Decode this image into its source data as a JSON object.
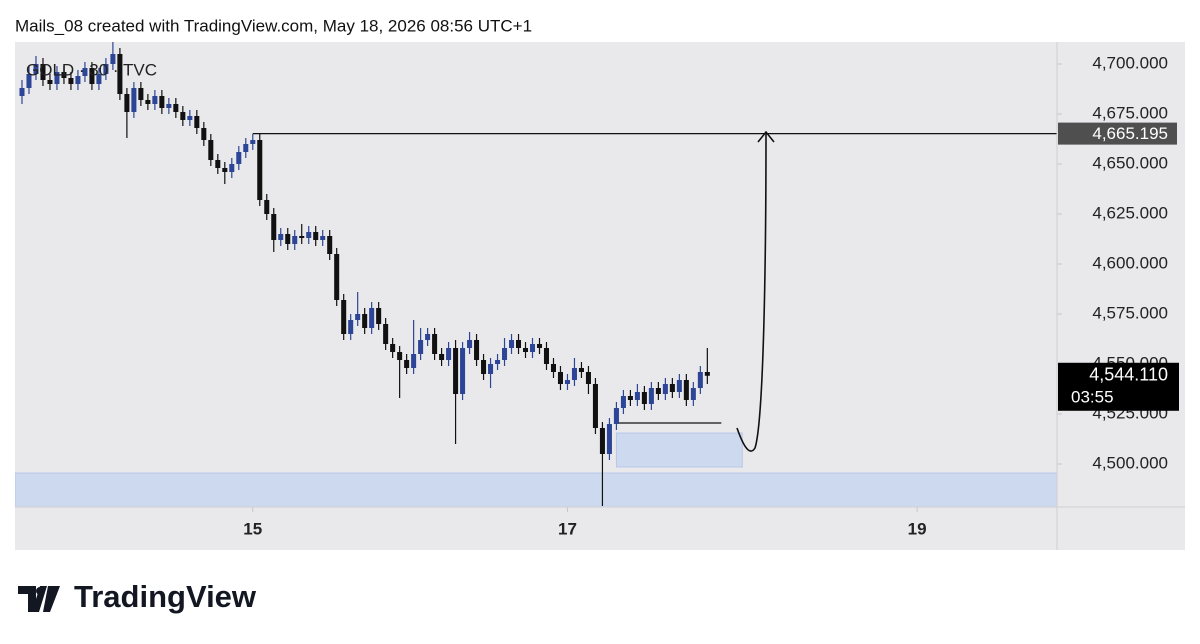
{
  "chart_data": {
    "type": "candlestick",
    "title": "Mails_08 created with TradingView.com, May 18, 2026 08:56 UTC+1",
    "symbol": "GOLD · 30 · TVC",
    "brand": "TradingView",
    "up_color": "#2d4596",
    "down_color": "#111111",
    "x": [
      1,
      2,
      3,
      4,
      5,
      6,
      7,
      8,
      9,
      10,
      11,
      12,
      13,
      14,
      15,
      16,
      17,
      18,
      19,
      20,
      21,
      22,
      23,
      24,
      25,
      26,
      27,
      28,
      29,
      30,
      31,
      32,
      33,
      34,
      35,
      36,
      37,
      38,
      39,
      40,
      41,
      42,
      43,
      44,
      45,
      46,
      47,
      48,
      49,
      50,
      51,
      52,
      53,
      54,
      55,
      56,
      57,
      58,
      59,
      60,
      61,
      62,
      63,
      64,
      65,
      66,
      67,
      68,
      69,
      70,
      71,
      72,
      73,
      74,
      75,
      76,
      77,
      78,
      79,
      80,
      81,
      82,
      83,
      84,
      85,
      86,
      87,
      88,
      89,
      90,
      91,
      92,
      93,
      94,
      95,
      96,
      97,
      98,
      99
    ],
    "open": [
      4684,
      4688,
      4695,
      4700,
      4692,
      4690,
      4696,
      4693,
      4690,
      4694,
      4698,
      4690,
      4695,
      4700,
      4705,
      4685,
      4676,
      4688,
      4682,
      4680,
      4684,
      4678,
      4680,
      4676,
      4672,
      4674,
      4668,
      4662,
      4652,
      4648,
      4646,
      4650,
      4656,
      4660,
      4662,
      4632,
      4625,
      4612,
      4615,
      4610,
      4614,
      4613,
      4616,
      4612,
      4614,
      4605,
      4582,
      4565,
      4572,
      4575,
      4568,
      4578,
      4570,
      4560,
      4556,
      4552,
      4548,
      4555,
      4562,
      4565,
      4555,
      4552,
      4558,
      4535,
      4558,
      4562,
      4552,
      4545,
      4550,
      4552,
      4558,
      4562,
      4558,
      4556,
      4560,
      4558,
      4550,
      4546,
      4540,
      4542,
      4548,
      4546,
      4540,
      4518,
      4505,
      4520,
      4528,
      4534,
      4532,
      4536,
      4530,
      4538,
      4535,
      4540,
      4536,
      4542,
      4532,
      4538,
      4546
    ],
    "high": [
      4692,
      4699,
      4704,
      4703,
      4695,
      4699,
      4699,
      4696,
      4697,
      4701,
      4701,
      4698,
      4703,
      4712,
      4708,
      4688,
      4691,
      4691,
      4685,
      4687,
      4687,
      4683,
      4683,
      4679,
      4677,
      4677,
      4671,
      4665,
      4655,
      4651,
      4653,
      4659,
      4663,
      4665,
      4665,
      4635,
      4628,
      4618,
      4618,
      4617,
      4620,
      4619,
      4619,
      4617,
      4617,
      4608,
      4585,
      4575,
      4586,
      4578,
      4581,
      4581,
      4573,
      4563,
      4559,
      4555,
      4572,
      4568,
      4568,
      4568,
      4558,
      4561,
      4562,
      4561,
      4566,
      4565,
      4555,
      4553,
      4555,
      4563,
      4565,
      4565,
      4561,
      4563,
      4563,
      4561,
      4553,
      4549,
      4545,
      4553,
      4551,
      4549,
      4543,
      4521,
      4523,
      4531,
      4537,
      4537,
      4540,
      4539,
      4541,
      4541,
      4543,
      4543,
      4545,
      4545,
      4541,
      4549,
      4558
    ],
    "low": [
      4680,
      4685,
      4692,
      4689,
      4687,
      4687,
      4690,
      4687,
      4687,
      4691,
      4687,
      4687,
      4692,
      4697,
      4682,
      4663,
      4673,
      4679,
      4677,
      4677,
      4675,
      4675,
      4673,
      4669,
      4669,
      4665,
      4659,
      4649,
      4645,
      4640,
      4643,
      4647,
      4653,
      4657,
      4629,
      4622,
      4606,
      4609,
      4607,
      4607,
      4610,
      4610,
      4609,
      4609,
      4602,
      4579,
      4562,
      4562,
      4569,
      4565,
      4565,
      4567,
      4557,
      4553,
      4533,
      4545,
      4545,
      4552,
      4559,
      4552,
      4549,
      4549,
      4510,
      4532,
      4555,
      4549,
      4542,
      4538,
      4547,
      4549,
      4555,
      4555,
      4553,
      4553,
      4555,
      4547,
      4543,
      4537,
      4537,
      4539,
      4543,
      4535,
      4515,
      4479,
      4502,
      4517,
      4525,
      4529,
      4529,
      4527,
      4527,
      4532,
      4532,
      4533,
      4533,
      4529,
      4529,
      4535,
      4540
    ],
    "close": [
      4688,
      4695,
      4700,
      4692,
      4690,
      4696,
      4693,
      4690,
      4694,
      4698,
      4690,
      4695,
      4700,
      4705,
      4685,
      4676,
      4688,
      4682,
      4680,
      4684,
      4678,
      4680,
      4676,
      4672,
      4674,
      4668,
      4662,
      4652,
      4648,
      4646,
      4650,
      4656,
      4660,
      4662,
      4632,
      4625,
      4612,
      4615,
      4610,
      4614,
      4613,
      4616,
      4612,
      4614,
      4605,
      4582,
      4565,
      4572,
      4575,
      4568,
      4578,
      4570,
      4560,
      4556,
      4552,
      4548,
      4555,
      4562,
      4565,
      4555,
      4552,
      4558,
      4535,
      4558,
      4562,
      4552,
      4545,
      4550,
      4552,
      4558,
      4562,
      4558,
      4556,
      4560,
      4558,
      4550,
      4546,
      4540,
      4542,
      4548,
      4546,
      4540,
      4518,
      4505,
      4520,
      4528,
      4534,
      4532,
      4536,
      4530,
      4538,
      4535,
      4540,
      4536,
      4542,
      4532,
      4538,
      4546,
      4544.11
    ],
    "last_price_label": "4,544.110",
    "countdown": "03:55",
    "level": {
      "value": 4665.195,
      "label": "4,665.195",
      "from_x": 34
    },
    "zones": [
      {
        "from": 4478.5,
        "to": 4495.5,
        "x": [
          0,
          149
        ],
        "color": "#cdd9ee"
      },
      {
        "from": 4498.5,
        "to": 4515.5,
        "x": [
          86,
          104
        ],
        "color": "#cdd9ee"
      }
    ],
    "target_line": {
      "value": 4520.5,
      "x": [
        86,
        101
      ]
    },
    "xlim": [
      0,
      149
    ],
    "ylim": [
      4478.5,
      4711
    ],
    "xticks": [
      {
        "value": 34,
        "label": "15"
      },
      {
        "value": 79,
        "label": "17"
      },
      {
        "value": 129,
        "label": "19"
      }
    ],
    "yticks": [
      {
        "value": 4500,
        "label": "4,500.000"
      },
      {
        "value": 4525,
        "label": "4,525.000"
      },
      {
        "value": 4550,
        "label": "4,550.000"
      },
      {
        "value": 4575,
        "label": "4,575.000"
      },
      {
        "value": 4600,
        "label": "4,600.000"
      },
      {
        "value": 4625,
        "label": "4,625.000"
      },
      {
        "value": 4650,
        "label": "4,650.000"
      },
      {
        "value": 4675,
        "label": "4,675.000"
      },
      {
        "value": 4700,
        "label": "4,700.000"
      }
    ]
  }
}
